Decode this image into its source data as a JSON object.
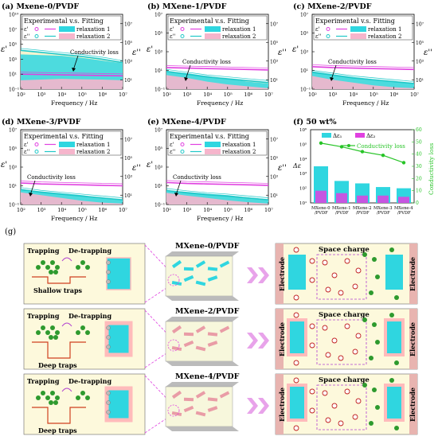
{
  "figure": {
    "panel_g_label": "(g)"
  },
  "chart_data": [
    {
      "id": "a",
      "type": "line",
      "title": "(a) Mxene-0/PVDF",
      "subtitle": "Experimental v.s. Fitting",
      "xlabel": "Frequency / Hz",
      "ylabel": "ε'",
      "y2label": "ε''",
      "xticks": [
        "10²",
        "10³",
        "10⁴",
        "10⁵",
        "10⁶",
        "10⁷"
      ],
      "yticks": [
        "10⁻¹",
        "10¹",
        "10³",
        "10⁵",
        "10⁷",
        "10¹⁰"
      ],
      "y2ticks": [
        "10¹",
        "10³",
        "10⁵",
        "10⁷"
      ],
      "legend": [
        "ε'",
        "ε''",
        "relaxation 1",
        "relaxation 2"
      ],
      "annotation": "Conductivity loss",
      "xlog": [
        2,
        7
      ],
      "ylog": [
        -1,
        10
      ],
      "series": [
        {
          "name": "ε'",
          "x": [
            2,
            3,
            4,
            5,
            6,
            7
          ],
          "y": [
            1.2,
            1.15,
            1.1,
            1.05,
            1.0,
            0.95
          ]
        },
        {
          "name": "ε''",
          "x": [
            2,
            3,
            4,
            5,
            6,
            7
          ],
          "y": [
            4.7,
            4.4,
            4.1,
            3.8,
            3.4,
            2.9
          ]
        }
      ],
      "relax1": {
        "x": [
          2,
          3,
          4,
          5,
          6,
          7
        ],
        "y": [
          4.1,
          4.0,
          3.9,
          3.6,
          3.2,
          2.8
        ]
      },
      "relax2": {
        "x": [
          2,
          3,
          4,
          5,
          6,
          7
        ],
        "y": [
          0.3,
          0.4,
          0.5,
          0.45,
          0.4,
          0.3
        ]
      }
    },
    {
      "id": "b",
      "type": "line",
      "title": "(b) MXene-1/PVDF",
      "subtitle": "Experimental v.s. Fitting",
      "xlabel": "Frequency / Hz",
      "ylabel": "ε'",
      "y2label": "ε''",
      "xticks": [
        "10²",
        "10³",
        "10⁴",
        "10⁵",
        "10⁶",
        "10⁷"
      ],
      "yticks": [
        "10⁻¹",
        "10¹",
        "10³",
        "10⁵",
        "10⁷"
      ],
      "y2ticks": [
        "10¹",
        "10³",
        "10⁵",
        "10⁷"
      ],
      "legend": [
        "ε'",
        "ε''",
        "relaxation 1",
        "relaxation 2"
      ],
      "annotation": "Conductivity loss",
      "xlog": [
        2,
        7
      ],
      "ylog": [
        -1,
        7
      ],
      "series": [
        {
          "name": "ε'",
          "x": [
            2,
            3,
            4,
            5,
            6,
            7
          ],
          "y": [
            1.3,
            1.25,
            1.2,
            1.15,
            1.1,
            1.05
          ]
        },
        {
          "name": "ε''",
          "x": [
            2,
            3,
            4,
            5,
            6,
            7
          ],
          "y": [
            0.9,
            0.6,
            0.3,
            0.1,
            -0.1,
            -0.3
          ]
        }
      ],
      "relax1": {
        "x": [
          2,
          3,
          4,
          5,
          6,
          7
        ],
        "y": [
          0.9,
          0.7,
          0.4,
          0.1,
          -0.2,
          -0.4
        ]
      },
      "relax2": {
        "x": [
          2,
          3,
          4,
          5,
          6,
          7
        ],
        "y": [
          0.5,
          0.2,
          -0.2,
          -0.5,
          -0.7,
          -0.9
        ]
      }
    },
    {
      "id": "c",
      "type": "line",
      "title": "(c) MXene-2/PVDF",
      "subtitle": "Experimental v.s. Fitting",
      "xlabel": "Frequency / Hz",
      "ylabel": "ε'",
      "y2label": "ε''",
      "xticks": [
        "10²",
        "10³",
        "10⁴",
        "10⁵",
        "10⁶",
        "10⁷"
      ],
      "yticks": [
        "10⁻¹",
        "10¹",
        "10³",
        "10⁵",
        "10⁷"
      ],
      "y2ticks": [
        "10¹",
        "10³",
        "10⁵",
        "10⁷"
      ],
      "legend": [
        "ε'",
        "ε''",
        "relaxation 1",
        "relaxation 2"
      ],
      "annotation": "Conductivity loss",
      "xlog": [
        2,
        7
      ],
      "ylog": [
        -1,
        7
      ],
      "series": [
        {
          "name": "ε'",
          "x": [
            2,
            3,
            4,
            5,
            6,
            7
          ],
          "y": [
            1.4,
            1.3,
            1.25,
            1.2,
            1.15,
            1.1
          ]
        },
        {
          "name": "ε''",
          "x": [
            2,
            3,
            4,
            5,
            6,
            7
          ],
          "y": [
            0.8,
            0.5,
            0.2,
            0.0,
            -0.2,
            -0.4
          ]
        }
      ],
      "relax1": {
        "x": [
          2,
          3,
          4,
          5,
          6,
          7
        ],
        "y": [
          0.9,
          0.6,
          0.3,
          0.05,
          -0.2,
          -0.4
        ]
      },
      "relax2": {
        "x": [
          2,
          3,
          4,
          5,
          6,
          7
        ],
        "y": [
          0.4,
          0.0,
          -0.3,
          -0.6,
          -0.8,
          -0.9
        ]
      }
    },
    {
      "id": "d",
      "type": "line",
      "title": "(d) MXene-3/PVDF",
      "subtitle": "Experimental v.s. Fitting",
      "xlabel": "Frequency / Hz",
      "ylabel": "ε'",
      "y2label": "ε''",
      "xticks": [
        "10²",
        "10³",
        "10⁴",
        "10⁵",
        "10⁶",
        "10⁷"
      ],
      "yticks": [
        "10⁻¹",
        "10¹",
        "10³",
        "10⁵",
        "10⁷"
      ],
      "y2ticks": [
        "10¹",
        "10³",
        "10⁵",
        "10⁷"
      ],
      "legend": [
        "ε'",
        "ε''",
        "relaxation 1",
        "relaxation 2"
      ],
      "annotation": "Conductivity loss",
      "xlog": [
        2,
        7
      ],
      "ylog": [
        -1,
        7
      ],
      "series": [
        {
          "name": "ε'",
          "x": [
            2,
            3,
            4,
            5,
            6,
            7
          ],
          "y": [
            1.3,
            1.2,
            1.15,
            1.1,
            1.05,
            1.0
          ]
        },
        {
          "name": "ε''",
          "x": [
            2,
            3,
            4,
            5,
            6,
            7
          ],
          "y": [
            0.6,
            0.3,
            0.1,
            -0.1,
            -0.3,
            -0.5
          ]
        }
      ],
      "relax1": {
        "x": [
          2,
          3,
          4,
          5,
          6,
          7
        ],
        "y": [
          0.6,
          0.4,
          0.2,
          0.0,
          -0.3,
          -0.5
        ]
      },
      "relax2": {
        "x": [
          2,
          3,
          4,
          5,
          6,
          7
        ],
        "y": [
          0.3,
          0.0,
          -0.3,
          -0.6,
          -0.8,
          -0.9
        ]
      }
    },
    {
      "id": "e",
      "type": "line",
      "title": "(e) MXene-4/PVDF",
      "subtitle": "Experimental v.s. Fitting",
      "xlabel": "Frequency / Hz",
      "ylabel": "ε'",
      "y2label": "ε''",
      "xticks": [
        "10²",
        "10³",
        "10⁴",
        "10⁵",
        "10⁶",
        "10⁷"
      ],
      "yticks": [
        "10⁻¹",
        "10¹",
        "10³",
        "10⁵",
        "10⁷"
      ],
      "y2ticks": [
        "10¹",
        "10³",
        "10⁵",
        "10⁷"
      ],
      "legend": [
        "ε'",
        "ε''",
        "relaxation 1",
        "relaxation 2"
      ],
      "annotation": "Conductivity loss",
      "xlog": [
        2,
        7
      ],
      "ylog": [
        -1,
        7
      ],
      "series": [
        {
          "name": "ε'",
          "x": [
            2,
            3,
            4,
            5,
            6,
            7
          ],
          "y": [
            1.35,
            1.25,
            1.2,
            1.15,
            1.1,
            1.05
          ]
        },
        {
          "name": "ε''",
          "x": [
            2,
            3,
            4,
            5,
            6,
            7
          ],
          "y": [
            0.5,
            0.25,
            0.05,
            -0.1,
            -0.3,
            -0.5
          ]
        }
      ],
      "relax1": {
        "x": [
          2,
          3,
          4,
          5,
          6,
          7
        ],
        "y": [
          0.5,
          0.35,
          0.15,
          0.0,
          -0.25,
          -0.45
        ]
      },
      "relax2": {
        "x": [
          2,
          3,
          4,
          5,
          6,
          7
        ],
        "y": [
          0.25,
          -0.05,
          -0.3,
          -0.55,
          -0.75,
          -0.9
        ]
      }
    },
    {
      "id": "f",
      "type": "bar",
      "title": "(f) 50 wt%",
      "categories": [
        "MXene-0/PVDF",
        "MXene-1/PVDF",
        "MXene-2/PVDF",
        "MXene-3/PVDF",
        "MXene-4/PVDF"
      ],
      "series": [
        {
          "name": "Δε₁",
          "values": [
            30,
            18,
            16,
            13,
            12
          ]
        },
        {
          "name": "Δε₂",
          "values": [
            10,
            8,
            6,
            6,
            5
          ]
        }
      ],
      "line": {
        "name": "Conductivity loss",
        "values": [
          49,
          46,
          42,
          39,
          33
        ]
      },
      "yticks": [
        "10¹",
        "10²",
        "10³",
        "10⁴",
        "10⁵",
        "10⁶"
      ],
      "y2ticks": [
        "0",
        "10",
        "20",
        "30",
        "40",
        "50",
        "60"
      ],
      "ylim": [
        0,
        60
      ],
      "y2lim": [
        0,
        60
      ],
      "ylabel": "Δε",
      "y2label": "Conductivity loss"
    }
  ],
  "schematic": {
    "rows": [
      {
        "title": "MXene-0/PVDF",
        "trapping": "Trapping",
        "detrapping": "De-trapping",
        "traps": "Shallow traps",
        "space_charge": "Space charge",
        "electrode": "Electrode"
      },
      {
        "title": "MXene-2/PVDF",
        "trapping": "Trapping",
        "detrapping": "De-trapping",
        "traps": "Deep traps",
        "space_charge": "Space charge",
        "electrode": "Electrode"
      },
      {
        "title": "MXene-4/PVDF",
        "trapping": "Trapping",
        "detrapping": "De-trapping",
        "traps": "Deep traps",
        "space_charge": "Space charge",
        "electrode": "Electrode"
      }
    ]
  },
  "colors": {
    "magenta": "#e040e0",
    "cyan": "#20c8c8",
    "cyanfill": "#2fd6e0",
    "pinkfill": "#f6b5cc",
    "yellowfill": "#f3f3cc",
    "green": "#27c427",
    "panelbg": "#fdf9dc",
    "purple": "#b040d0"
  }
}
